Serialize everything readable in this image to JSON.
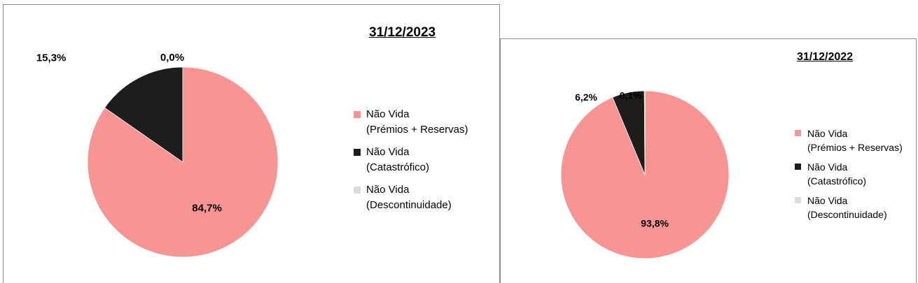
{
  "chart_data": [
    {
      "type": "pie",
      "title": "31/12/2023",
      "categories": [
        "Não Vida (Prémios + Reservas)",
        "Não Vida (Catastrófico)",
        "Não Vida (Descontinuidade)"
      ],
      "legend": [
        {
          "lines": [
            "Não Vida",
            "(Prémios + Reservas)"
          ]
        },
        {
          "lines": [
            "Não Vida",
            "(Catastrófico)"
          ]
        },
        {
          "lines": [
            "Não Vida",
            "(Descontinuidade)"
          ]
        }
      ],
      "values": [
        84.7,
        15.3,
        0.0
      ],
      "data_labels": [
        "84,7%",
        "15,3%",
        "0,0%"
      ],
      "colors": [
        "#f79494",
        "#1f1c1c",
        "#dcdcdc"
      ],
      "legend_position": "right"
    },
    {
      "type": "pie",
      "title": "31/12/2022",
      "categories": [
        "Não Vida (Prémios + Reservas)",
        "Não Vida (Catastrófico)",
        "Não Vida (Descontinuidade)"
      ],
      "legend": [
        {
          "lines": [
            "Não Vida",
            "(Prémios + Reservas)"
          ]
        },
        {
          "lines": [
            "Não Vida",
            "(Catastrófico)"
          ]
        },
        {
          "lines": [
            "Não Vida",
            "(Descontinuidade)"
          ]
        }
      ],
      "values": [
        93.8,
        6.2,
        0.1
      ],
      "data_labels": [
        "93,8%",
        "6,2%",
        "0,1%"
      ],
      "colors": [
        "#f79494",
        "#1f1c1c",
        "#dcdcdc"
      ],
      "legend_position": "right"
    }
  ]
}
